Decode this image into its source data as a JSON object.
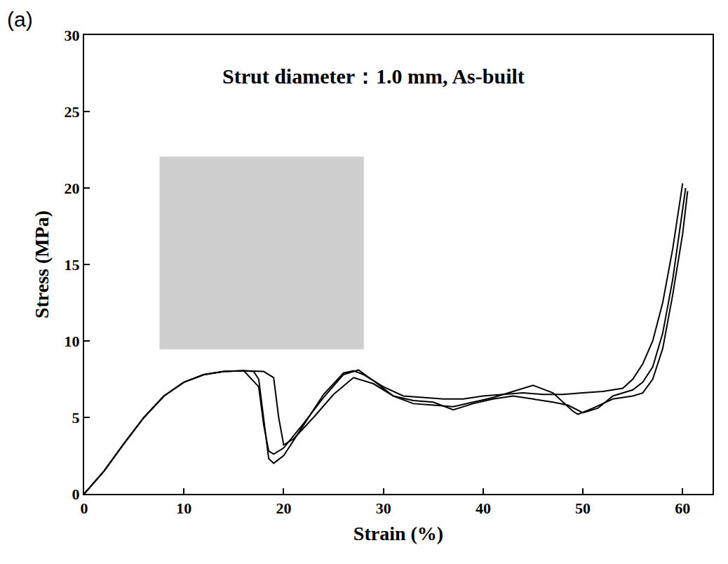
{
  "chart_data": {
    "type": "line",
    "panel_label": "(a)",
    "title": "Strut diameter：1.0 mm, As-built",
    "x_label": "Strain (%)",
    "y_label": "Stress (MPa)",
    "xlim": [
      0,
      63
    ],
    "ylim": [
      0,
      30
    ],
    "xticks": [
      0,
      10,
      20,
      30,
      40,
      50,
      60
    ],
    "yticks": [
      0,
      5,
      10,
      15,
      20,
      25,
      30
    ],
    "grid": false,
    "series": [
      {
        "color": "#000000",
        "x": [
          0,
          2,
          4,
          6,
          8,
          10,
          12,
          14,
          16,
          17,
          17.5,
          18,
          18.5,
          19,
          20,
          22,
          24,
          26,
          27,
          28,
          30,
          32,
          34,
          36,
          38,
          40,
          42,
          44,
          46,
          48,
          50,
          52,
          54,
          55,
          56,
          57,
          58,
          59,
          60
        ],
        "values": [
          0,
          1.5,
          3.3,
          5.0,
          6.4,
          7.3,
          7.8,
          8.0,
          8.05,
          8.0,
          7.5,
          5.0,
          2.3,
          2.0,
          2.5,
          4.5,
          6.5,
          7.9,
          8.05,
          7.8,
          7.0,
          6.4,
          6.3,
          6.2,
          6.2,
          6.4,
          6.5,
          6.6,
          6.5,
          6.5,
          6.6,
          6.7,
          6.9,
          7.5,
          8.5,
          10.0,
          12.5,
          16.0,
          20.3
        ]
      },
      {
        "color": "#000000",
        "x": [
          0,
          2,
          4,
          6,
          8,
          10,
          12,
          14,
          16,
          18,
          19,
          19.5,
          20,
          21,
          23,
          25,
          27,
          29,
          31,
          33,
          35,
          37,
          39,
          41,
          43,
          45,
          47,
          49,
          49.5,
          51,
          53,
          55,
          56,
          57,
          58,
          59,
          60,
          60.5
        ],
        "values": [
          0,
          1.5,
          3.3,
          5.0,
          6.4,
          7.3,
          7.8,
          8.0,
          8.05,
          8.0,
          7.6,
          5.0,
          3.2,
          3.6,
          5.0,
          6.5,
          7.6,
          7.2,
          6.4,
          5.9,
          5.8,
          5.7,
          6.0,
          6.3,
          6.7,
          7.1,
          6.6,
          5.4,
          5.2,
          5.6,
          6.2,
          6.4,
          6.6,
          7.5,
          9.5,
          13.0,
          17.0,
          19.8
        ]
      },
      {
        "color": "#000000",
        "x": [
          0,
          2,
          4,
          6,
          8,
          10,
          12,
          14,
          16,
          17.5,
          18,
          18.5,
          19,
          20,
          22,
          24,
          26,
          27.5,
          29,
          31,
          33,
          35,
          37,
          39,
          41,
          43,
          45,
          47,
          48.5,
          50,
          51.5,
          53,
          55,
          56,
          57,
          58,
          59,
          60,
          60.3
        ],
        "values": [
          0,
          1.5,
          3.3,
          5.0,
          6.4,
          7.3,
          7.8,
          8.0,
          8.05,
          7.0,
          4.5,
          2.8,
          2.6,
          3.0,
          4.6,
          6.3,
          7.8,
          8.1,
          7.4,
          6.4,
          6.1,
          6.0,
          5.5,
          5.9,
          6.2,
          6.4,
          6.2,
          6.0,
          5.8,
          5.3,
          5.6,
          6.4,
          6.8,
          7.3,
          8.3,
          10.5,
          14.0,
          18.5,
          20.0
        ]
      }
    ]
  }
}
